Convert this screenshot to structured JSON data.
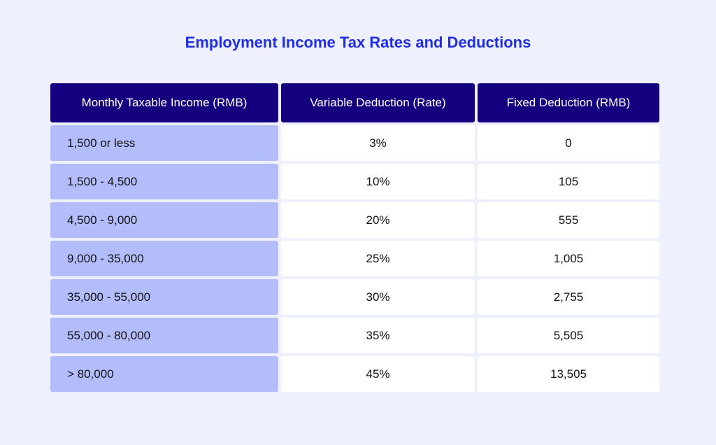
{
  "title": "Employment Income Tax Rates and Deductions",
  "headers": [
    "Monthly Taxable Income (RMB)",
    "Variable Deduction (Rate)",
    "Fixed Deduction (RMB)"
  ],
  "rows": [
    [
      "1,500 or less",
      "3%",
      "0"
    ],
    [
      "1,500 - 4,500",
      "10%",
      "105"
    ],
    [
      "4,500 - 9,000",
      "20%",
      "555"
    ],
    [
      "9,000 - 35,000",
      "25%",
      "1,005"
    ],
    [
      "35,000 - 55,000",
      "30%",
      "2,755"
    ],
    [
      "55,000 - 80,000",
      "35%",
      "5,505"
    ],
    [
      "> 80,000",
      "45%",
      "13,505"
    ]
  ],
  "colors": {
    "header": "#15007f",
    "first_column": "#b3bdfc",
    "title": "#1f2ee6",
    "background": "#eef0fe"
  }
}
